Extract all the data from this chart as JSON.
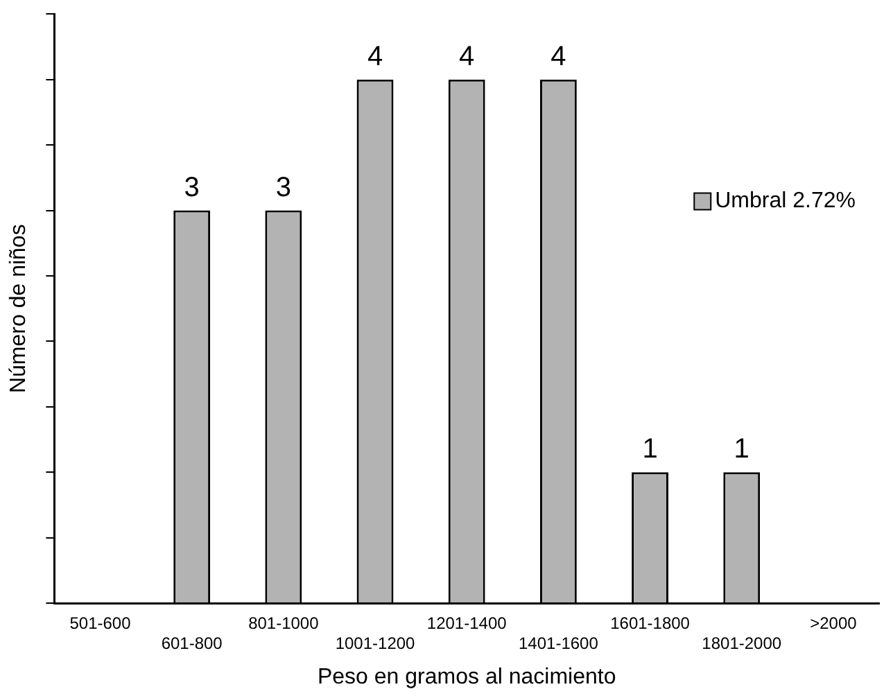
{
  "chart_data": {
    "type": "bar",
    "xlabel": "Peso en gramos al nacimiento",
    "ylabel": "Número de niños",
    "categories": [
      "501-600",
      "601-800",
      "801-1000",
      "1001-1200",
      "1201-1400",
      "1401-1600",
      "1601-1800",
      "1801-2000",
      ">2000"
    ],
    "series": [
      {
        "name": "Umbral 2.72%",
        "color": "#b3b3b3",
        "values": [
          null,
          3,
          3,
          4,
          4,
          4,
          1,
          1,
          null
        ]
      }
    ],
    "data_labels": true,
    "grid": false,
    "legend": "top right"
  }
}
